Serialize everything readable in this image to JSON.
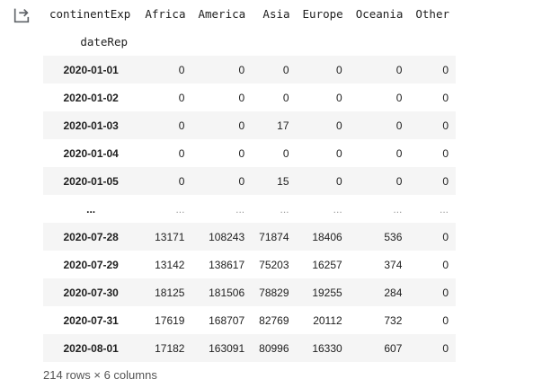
{
  "output": {
    "icon": "output-redirect-icon"
  },
  "table": {
    "columns_name": "continentExp",
    "index_name": "dateRep",
    "columns": [
      "Africa",
      "America",
      "Asia",
      "Europe",
      "Oceania",
      "Other"
    ],
    "rows": [
      {
        "index": "2020-01-01",
        "values": [
          "0",
          "0",
          "0",
          "0",
          "0",
          "0"
        ]
      },
      {
        "index": "2020-01-02",
        "values": [
          "0",
          "0",
          "0",
          "0",
          "0",
          "0"
        ]
      },
      {
        "index": "2020-01-03",
        "values": [
          "0",
          "0",
          "17",
          "0",
          "0",
          "0"
        ]
      },
      {
        "index": "2020-01-04",
        "values": [
          "0",
          "0",
          "0",
          "0",
          "0",
          "0"
        ]
      },
      {
        "index": "2020-01-05",
        "values": [
          "0",
          "0",
          "15",
          "0",
          "0",
          "0"
        ]
      },
      {
        "index": "...",
        "values": [
          "...",
          "...",
          "...",
          "...",
          "...",
          "..."
        ]
      },
      {
        "index": "2020-07-28",
        "values": [
          "13171",
          "108243",
          "71874",
          "18406",
          "536",
          "0"
        ]
      },
      {
        "index": "2020-07-29",
        "values": [
          "13142",
          "138617",
          "75203",
          "16257",
          "374",
          "0"
        ]
      },
      {
        "index": "2020-07-30",
        "values": [
          "18125",
          "181506",
          "78829",
          "19255",
          "284",
          "0"
        ]
      },
      {
        "index": "2020-07-31",
        "values": [
          "17619",
          "168707",
          "82769",
          "20112",
          "732",
          "0"
        ]
      },
      {
        "index": "2020-08-01",
        "values": [
          "17182",
          "163091",
          "80996",
          "16330",
          "607",
          "0"
        ]
      }
    ]
  },
  "summary": "214 rows × 6 columns"
}
